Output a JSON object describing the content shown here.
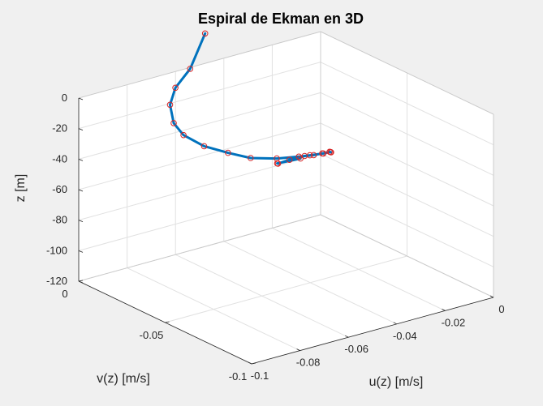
{
  "chart_data": {
    "type": "line3d",
    "title": "Espiral de Ekman en 3D",
    "xlabel": "u(z) [m/s]",
    "ylabel": "v(z) [m/s]",
    "zlabel": "z [m]",
    "xlim": [
      -0.1,
      0
    ],
    "ylim": [
      -0.1,
      0
    ],
    "zlim": [
      -120,
      0
    ],
    "x_ticks": [
      -0.1,
      -0.08,
      -0.06,
      -0.04,
      -0.02,
      0
    ],
    "x_tick_labels": [
      "-0.1",
      "-0.08",
      "-0.06",
      "-0.04",
      "-0.02",
      "0"
    ],
    "y_ticks": [
      0,
      -0.05,
      -0.1
    ],
    "y_tick_labels": [
      "0",
      "-0.05",
      "-0.1"
    ],
    "z_ticks": [
      0,
      -20,
      -40,
      -60,
      -80,
      -100,
      -120
    ],
    "z_tick_labels": [
      "0",
      "-20",
      "-40",
      "-60",
      "-80",
      "-100",
      "-120"
    ],
    "grid": true,
    "box": true,
    "line_color": "#0072bd",
    "marker_color": "#d62728",
    "series": [
      {
        "x": [
          -0.0121,
          -0.0251,
          -0.0292,
          -0.0283,
          -0.0264,
          -0.0288,
          -0.0285,
          -0.0301,
          -0.0342,
          -0.0384,
          -0.0455,
          -0.0529,
          -0.0618,
          -0.0728,
          -0.0836,
          -0.0909,
          -0.0977,
          -0.1012,
          -0.1014,
          -0.0965,
          -0.0899,
          -0.0798,
          -0.0607
        ],
        "y": [
          -0.0053,
          -0.01,
          -0.0162,
          -0.0216,
          -0.0277,
          -0.0341,
          -0.0415,
          -0.0473,
          -0.0539,
          -0.0595,
          -0.0646,
          -0.07,
          -0.0739,
          -0.0765,
          -0.0765,
          -0.0736,
          -0.0693,
          -0.0623,
          -0.0569,
          -0.0479,
          -0.0418,
          -0.0362,
          -0.0181
        ],
        "z": [
          -75,
          -70,
          -65,
          -60,
          -55,
          -50,
          -45,
          -40,
          -35,
          -30,
          -25,
          -20,
          -15,
          -10,
          -5,
          0,
          5,
          10,
          15,
          20,
          25,
          30,
          35
        ]
      }
    ]
  }
}
